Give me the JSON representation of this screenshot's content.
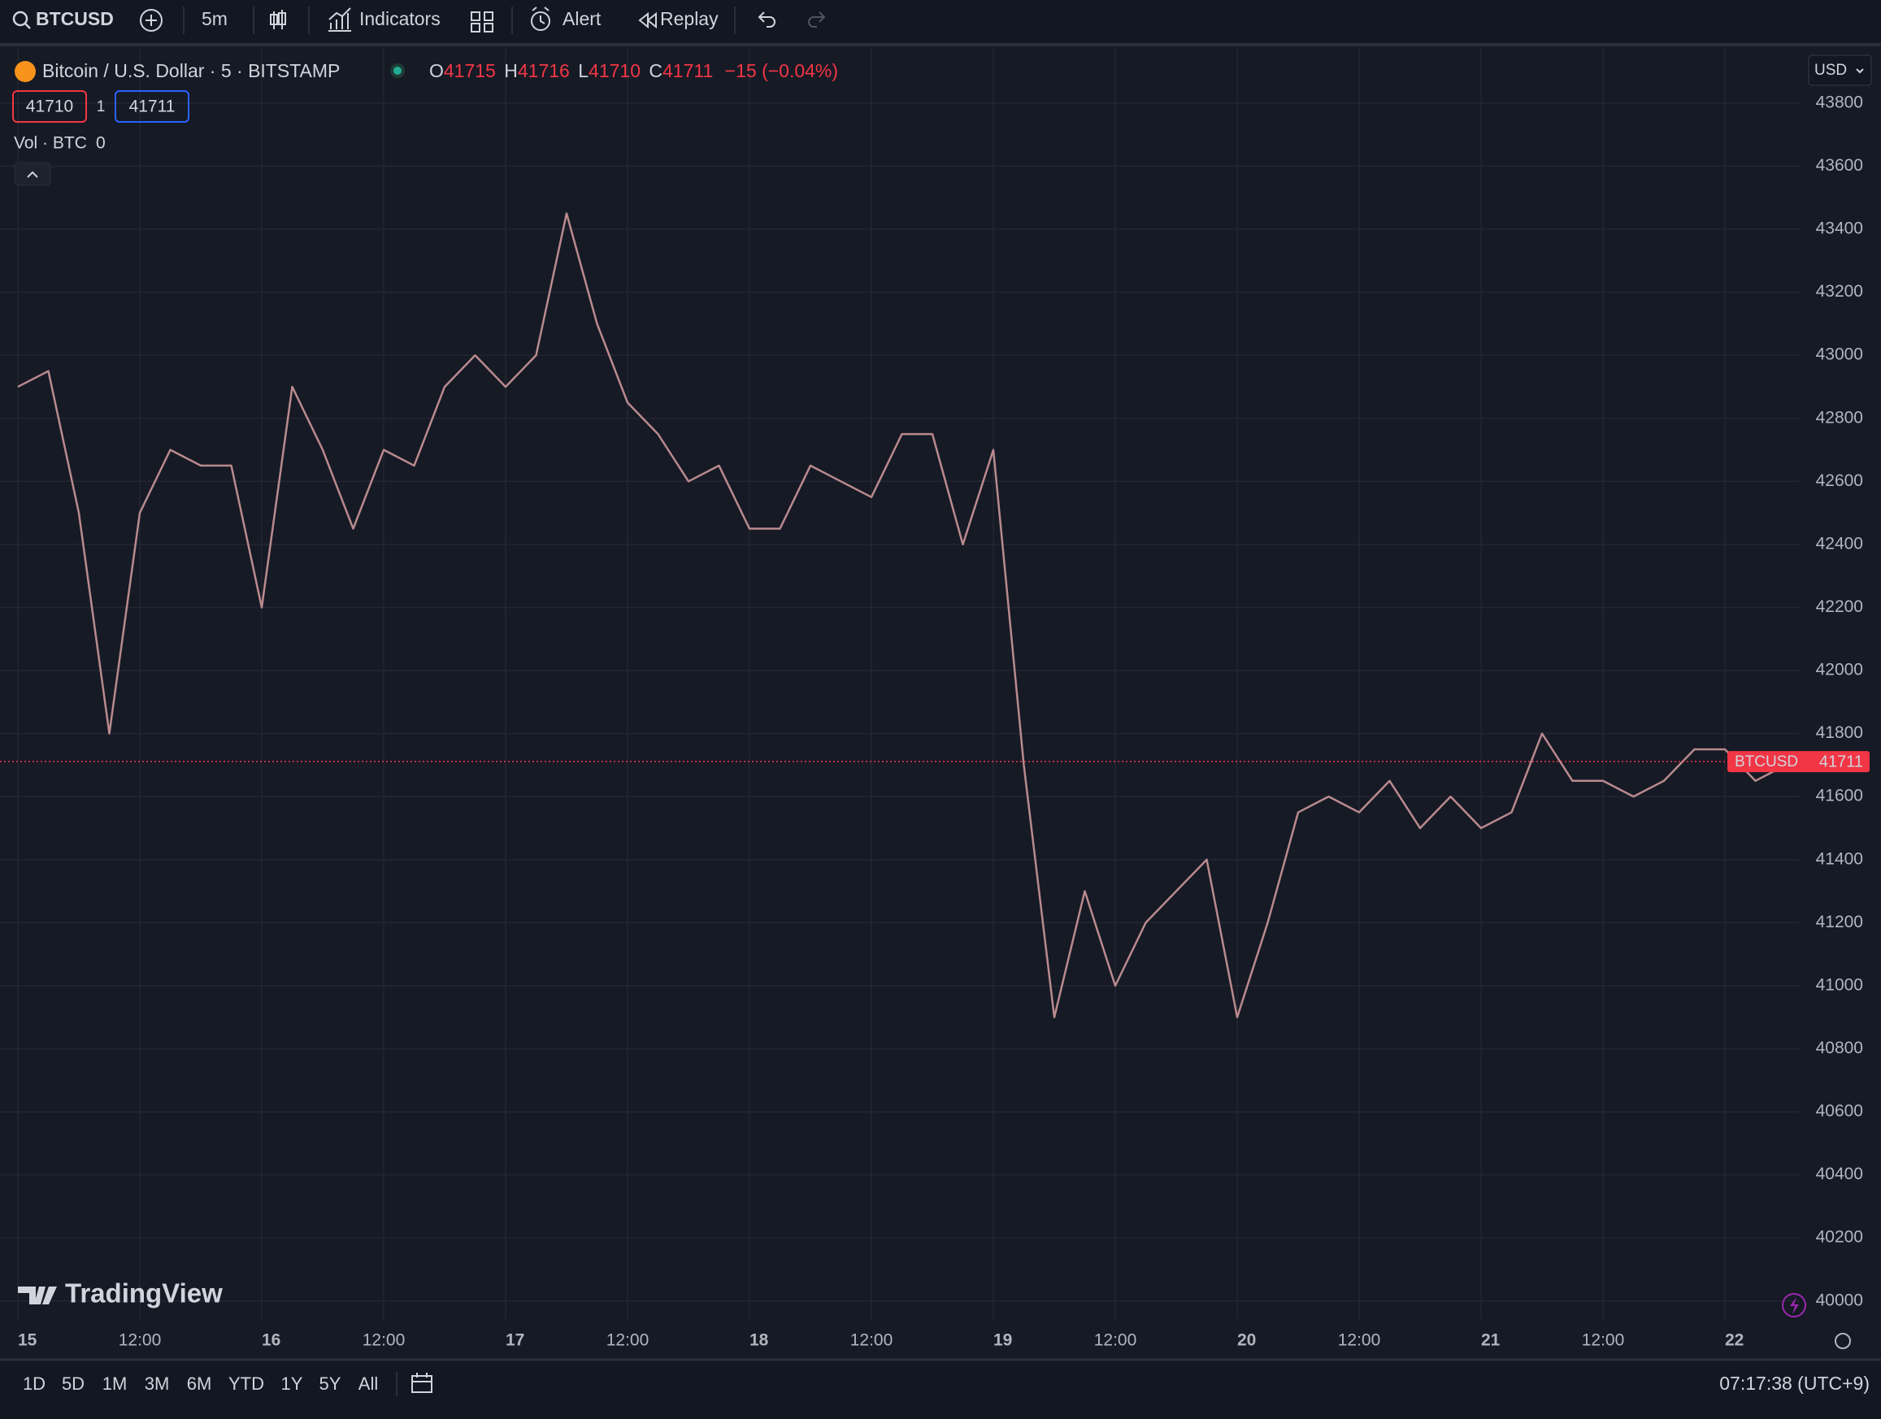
{
  "toolbar": {
    "symbol": "BTCUSD",
    "interval": "5m",
    "indicators": "Indicators",
    "alert": "Alert",
    "replay": "Replay"
  },
  "legend": {
    "title": "Bitcoin / U.S. Dollar · 5 · BITSTAMP",
    "ohlc": [
      {
        "label": "O",
        "value": 41715
      },
      {
        "label": "H",
        "value": 41716
      },
      {
        "label": "L",
        "value": 41710
      },
      {
        "label": "C",
        "value": 41711
      }
    ],
    "change": "−15 (−0.04%)"
  },
  "trade": {
    "sell": 41710,
    "qty": 1,
    "buy": 41711
  },
  "volume": {
    "label": "Vol · BTC",
    "value": 0
  },
  "currency": "USD",
  "price_tag": {
    "symbol": "BTCUSD",
    "price": 41711
  },
  "brand": "TradingView",
  "ranges": [
    "1D",
    "5D",
    "1M",
    "3M",
    "6M",
    "YTD",
    "1Y",
    "5Y",
    "All"
  ],
  "clock": "07:17:38 (UTC+9)",
  "chart_data": {
    "type": "line",
    "color": "#b98a8e",
    "grid": true,
    "categories": [
      "15",
      null,
      null,
      null,
      "12:00",
      null,
      null,
      null,
      "16",
      null,
      null,
      null,
      "12:00",
      null,
      null,
      null,
      "17",
      null,
      null,
      null,
      "12:00",
      null,
      null,
      null,
      "18",
      null,
      null,
      null,
      "12:00",
      null,
      null,
      null,
      "19",
      null,
      null,
      null,
      "12:00",
      null,
      null,
      null,
      "20",
      null,
      null,
      null,
      "12:00",
      null,
      null,
      null,
      "21",
      null,
      null,
      null,
      "12:00",
      null,
      null,
      null,
      "22",
      null,
      null
    ],
    "values": [
      42900,
      42950,
      42500,
      41800,
      42500,
      42700,
      42650,
      42650,
      42200,
      42900,
      42700,
      42450,
      42700,
      42650,
      42900,
      43000,
      42900,
      43000,
      43450,
      43100,
      42850,
      42750,
      42600,
      42650,
      42450,
      42450,
      42650,
      42600,
      42550,
      42750,
      42750,
      42400,
      42700,
      41700,
      40900,
      41300,
      41000,
      41200,
      41300,
      41400,
      40900,
      41200,
      41550,
      41600,
      41550,
      41650,
      41500,
      41600,
      41500,
      41550,
      41800,
      41650,
      41650,
      41600,
      41650,
      41750,
      41750,
      41650,
      41700
    ],
    "ylim": [
      39940,
      43975
    ],
    "yticks": [
      40000,
      40200,
      40400,
      40600,
      40800,
      41000,
      41200,
      41400,
      41600,
      41800,
      42000,
      42200,
      42400,
      42600,
      42800,
      43000,
      43200,
      43400,
      43600,
      43800
    ]
  }
}
